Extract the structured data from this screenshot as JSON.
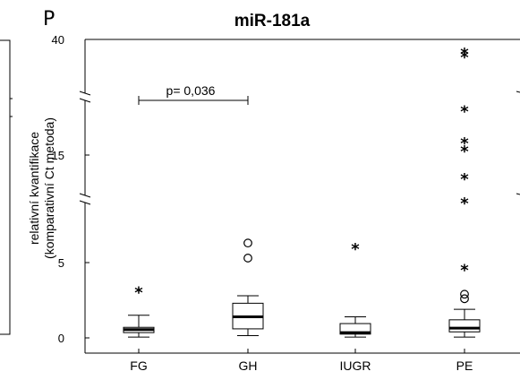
{
  "panel_label": "P",
  "chart_data": {
    "type": "box",
    "title": "miR-181a",
    "ylabel": [
      "relativní kvantifikace",
      "(komparativní Ct metoda)"
    ],
    "xlabel": "",
    "y_tick_labels": [
      "0",
      "5",
      "15",
      "40"
    ],
    "axis_breaks": "broken y-axis with three segments: 0–7, ~10–22, ~25–40",
    "categories": [
      "FG",
      "GH",
      "IUGR",
      "PE"
    ],
    "boxes": [
      {
        "category": "FG",
        "whisker_low": 0.05,
        "q1": 0.35,
        "median": 0.55,
        "q3": 0.7,
        "whisker_high": 1.5
      },
      {
        "category": "GH",
        "whisker_low": 0.15,
        "q1": 0.6,
        "median": 1.4,
        "q3": 2.3,
        "whisker_high": 2.8
      },
      {
        "category": "IUGR",
        "whisker_low": 0.05,
        "q1": 0.25,
        "median": 0.35,
        "q3": 0.95,
        "whisker_high": 1.4
      },
      {
        "category": "PE",
        "whisker_low": 0.05,
        "q1": 0.4,
        "median": 0.65,
        "q3": 1.2,
        "whisker_high": 1.9
      }
    ],
    "outliers_circle": [
      {
        "category": "GH",
        "y": 5.3
      },
      {
        "category": "GH",
        "y": 6.3
      },
      {
        "category": "PE",
        "y": 2.6
      },
      {
        "category": "PE",
        "y": 2.9
      }
    ],
    "outliers_star": [
      {
        "category": "FG",
        "y": 3.0
      },
      {
        "category": "IUGR",
        "y": 5.9
      },
      {
        "category": "PE",
        "y": 4.5
      },
      {
        "category": "PE",
        "y": 9.0
      },
      {
        "category": "PE",
        "y": 12.0
      },
      {
        "category": "PE",
        "y": 15.5
      },
      {
        "category": "PE",
        "y": 16.5
      },
      {
        "category": "PE",
        "y": 20.5
      },
      {
        "category": "PE",
        "y": 35.0
      },
      {
        "category": "PE",
        "y": 36.0
      }
    ],
    "annotation": {
      "text": "p= 0,036",
      "from": "FG",
      "to": "GH"
    }
  }
}
